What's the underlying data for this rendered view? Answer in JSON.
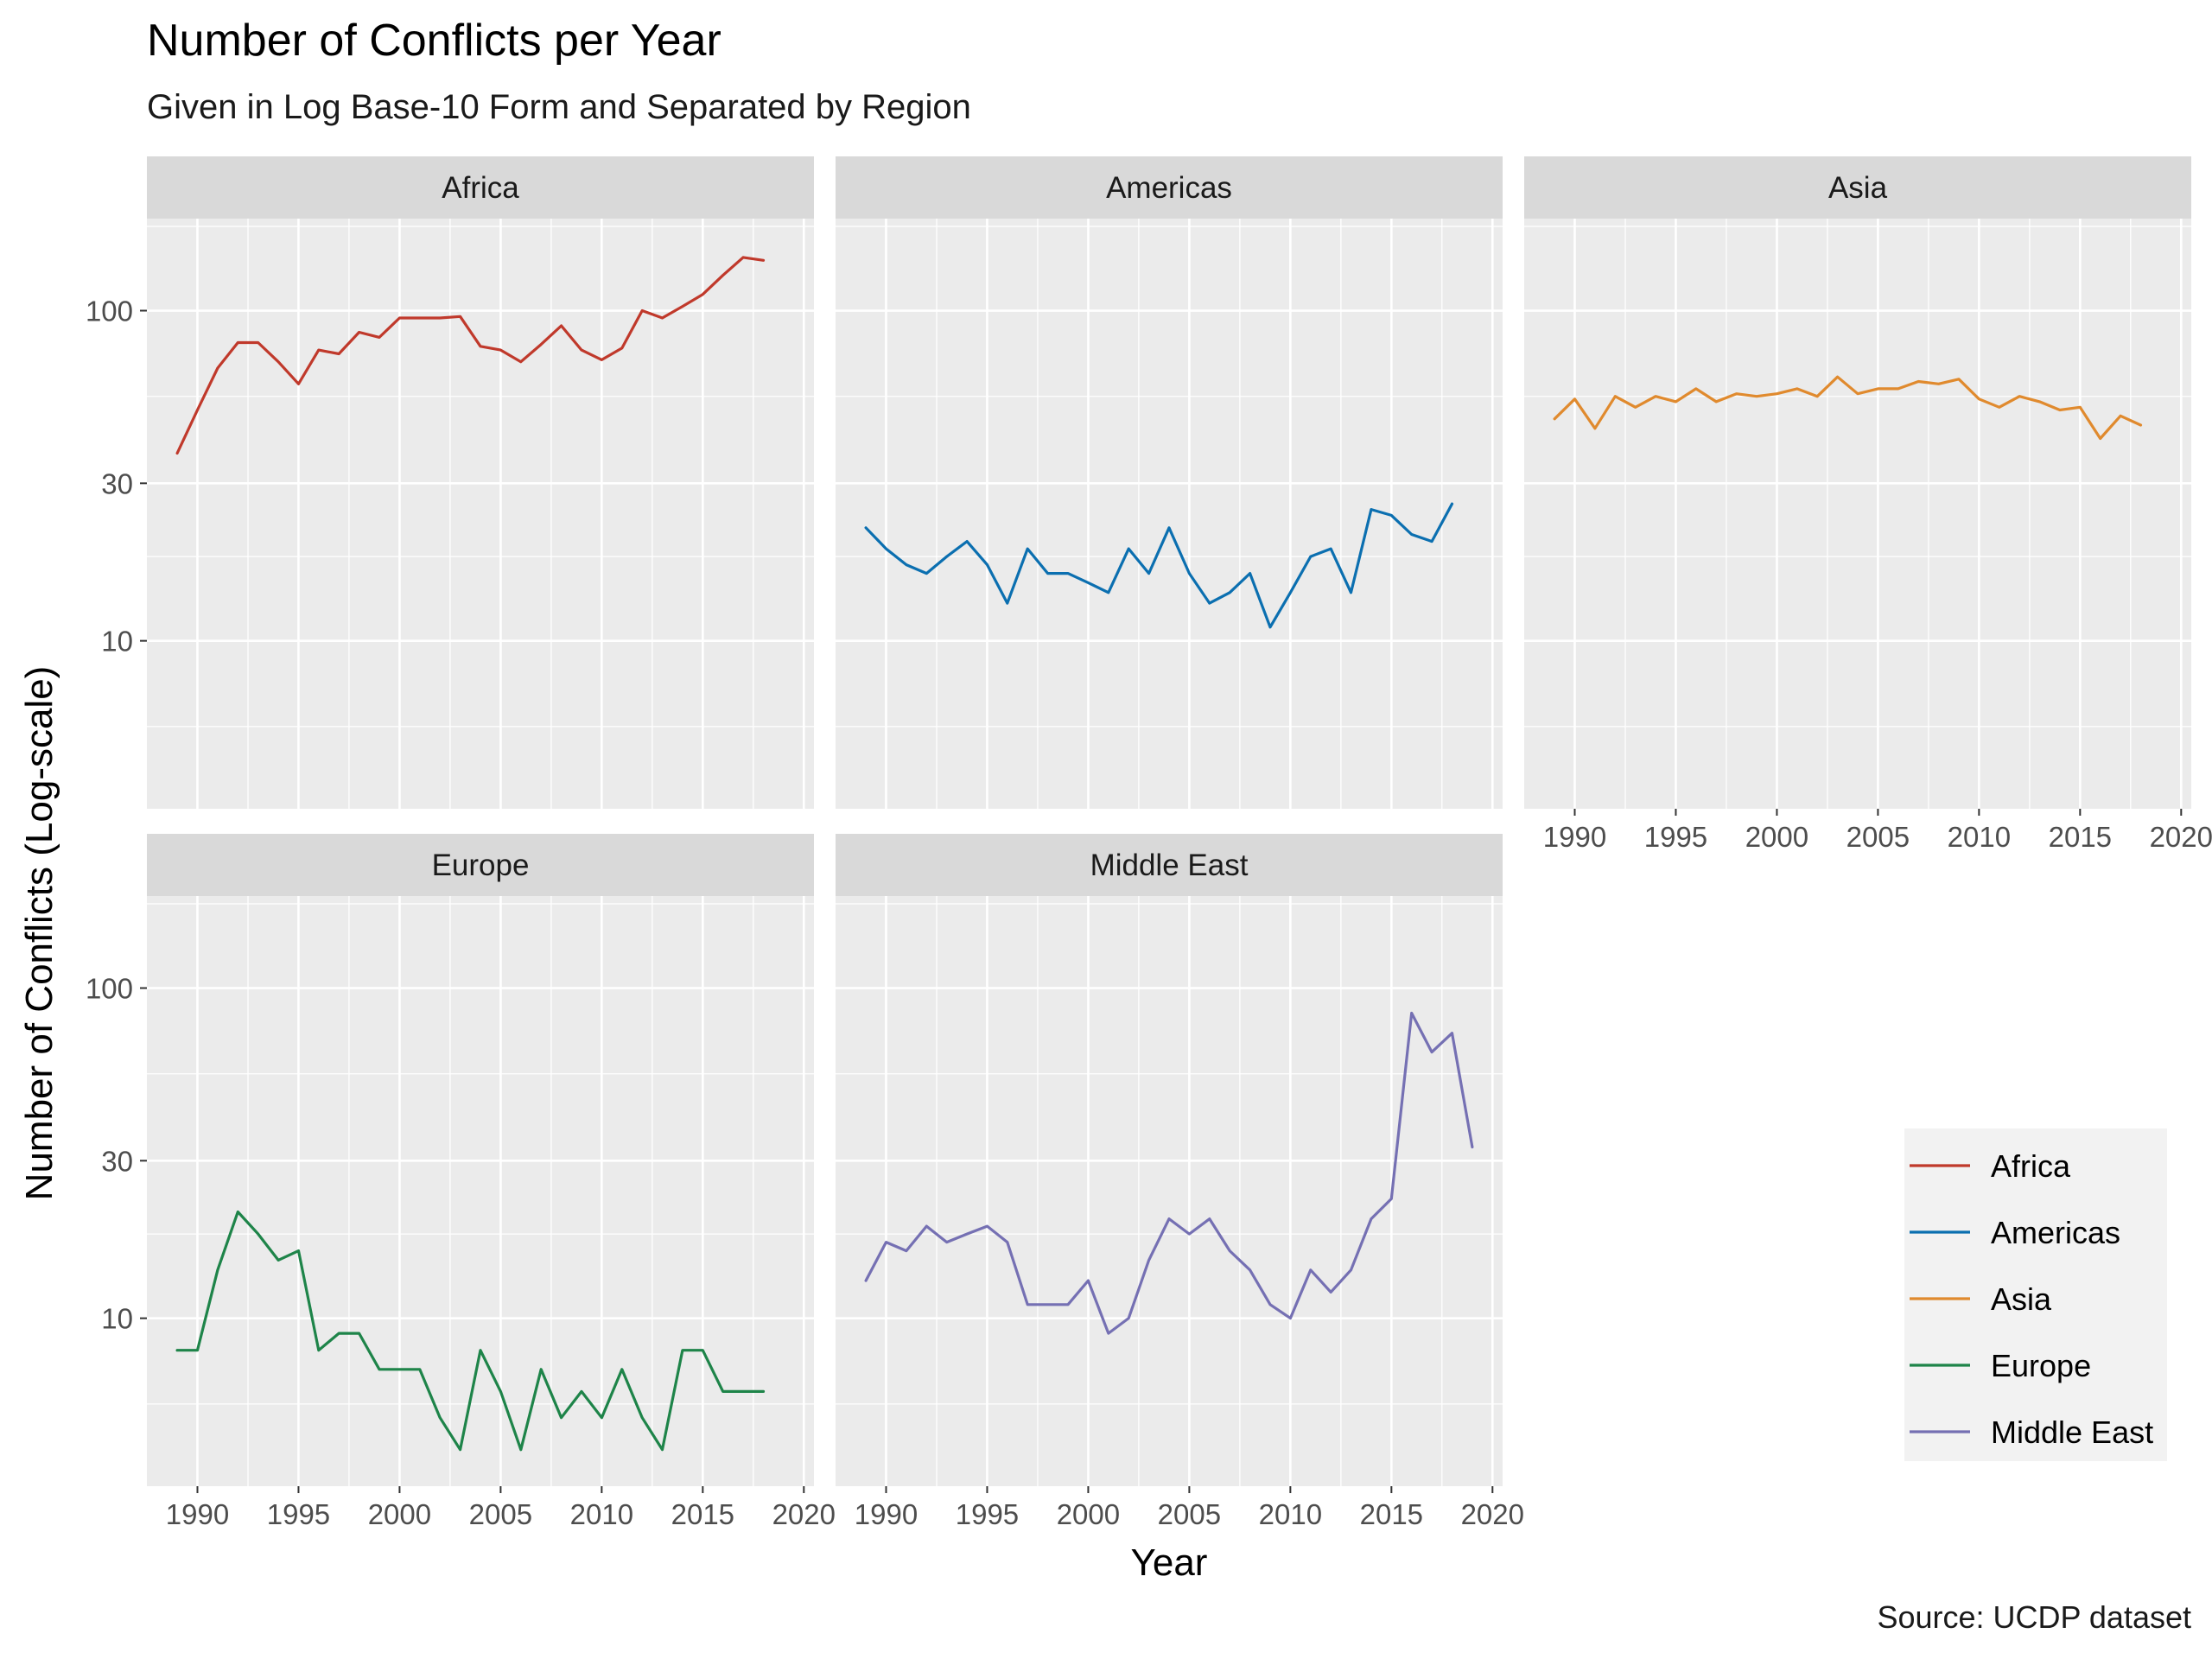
{
  "title": "Number of Conflicts per Year",
  "subtitle": "Given in Log Base-10 Form and Separated by Region",
  "caption": "Source: UCDP dataset",
  "xlabel": "Year",
  "ylabel": "Number of Conflicts (Log-scale)",
  "chart_data": {
    "type": "line",
    "layout": "facet-wrap",
    "xlabel": "Year",
    "ylabel": "Number of Conflicts (Log-scale)",
    "y_scale": "log10",
    "xlim": [
      1987.5,
      2020.5
    ],
    "ylim": [
      3.1,
      190
    ],
    "x_ticks": [
      1990,
      1995,
      2000,
      2005,
      2010,
      2015,
      2020
    ],
    "x_tick_labels": [
      "1990",
      "1995",
      "2000",
      "2005",
      "2010",
      "2015",
      "2020"
    ],
    "y_ticks": [
      10,
      30,
      100
    ],
    "y_tick_labels": [
      "10",
      "30",
      "100"
    ],
    "grid": true,
    "legend_position": "right",
    "series": [
      {
        "name": "Africa",
        "color": "#C0392B",
        "x": [
          1989,
          1990,
          1991,
          1992,
          1993,
          1994,
          1995,
          1996,
          1997,
          1998,
          1999,
          2000,
          2001,
          2002,
          2003,
          2004,
          2005,
          2006,
          2007,
          2008,
          2009,
          2010,
          2011,
          2012,
          2013,
          2014,
          2015,
          2016,
          2017,
          2018
        ],
        "y": [
          37,
          50,
          67,
          80,
          80,
          70,
          60,
          76,
          74,
          86,
          83,
          95,
          95,
          95,
          96,
          78,
          76,
          70,
          79,
          90,
          76,
          71,
          77,
          100,
          95,
          103,
          112,
          128,
          145,
          142
        ]
      },
      {
        "name": "Americas",
        "color": "#0B6FB0",
        "x": [
          1989,
          1990,
          1991,
          1992,
          1993,
          1994,
          1995,
          1996,
          1997,
          1998,
          1999,
          2000,
          2001,
          2002,
          2003,
          2004,
          2005,
          2006,
          2007,
          2008,
          2009,
          2010,
          2011,
          2012,
          2013,
          2014,
          2015,
          2016,
          2017,
          2018
        ],
        "y": [
          22,
          19,
          17,
          16,
          18,
          20,
          17,
          13,
          19,
          16,
          16,
          15,
          14,
          19,
          16,
          22,
          16,
          13,
          14,
          16,
          11,
          14,
          18,
          19,
          14,
          25,
          24,
          21,
          20,
          26
        ]
      },
      {
        "name": "Asia",
        "color": "#E08A2E",
        "x": [
          1989,
          1990,
          1991,
          1992,
          1993,
          1994,
          1995,
          1996,
          1997,
          1998,
          1999,
          2000,
          2001,
          2002,
          2003,
          2004,
          2005,
          2006,
          2007,
          2008,
          2009,
          2010,
          2011,
          2012,
          2013,
          2014,
          2015,
          2016,
          2017,
          2018
        ],
        "y": [
          47,
          54,
          44,
          55,
          51,
          55,
          53,
          58,
          53,
          56,
          55,
          56,
          58,
          55,
          63,
          56,
          58,
          58,
          61,
          60,
          62,
          54,
          51,
          55,
          53,
          50,
          51,
          41,
          48,
          45
        ]
      },
      {
        "name": "Europe",
        "color": "#1E8449",
        "x": [
          1989,
          1990,
          1991,
          1992,
          1993,
          1994,
          1995,
          1996,
          1997,
          1998,
          1999,
          2000,
          2001,
          2002,
          2003,
          2004,
          2005,
          2006,
          2007,
          2008,
          2009,
          2010,
          2011,
          2012,
          2013,
          2014,
          2015,
          2016,
          2017,
          2018
        ],
        "y": [
          8,
          8,
          14,
          21,
          18,
          15,
          16,
          8,
          9,
          9,
          7,
          7,
          7,
          5,
          4,
          8,
          6,
          4,
          7,
          5,
          6,
          5,
          7,
          5,
          4,
          8,
          8,
          6,
          6,
          6
        ]
      },
      {
        "name": "Middle East",
        "color": "#7570B3",
        "x": [
          1989,
          1990,
          1991,
          1992,
          1993,
          1994,
          1995,
          1996,
          1997,
          1998,
          1999,
          2000,
          2001,
          2002,
          2003,
          2004,
          2005,
          2006,
          2007,
          2008,
          2009,
          2010,
          2011,
          2012,
          2013,
          2014,
          2015,
          2016,
          2017,
          2018,
          2019
        ],
        "y": [
          13,
          17,
          16,
          19,
          17,
          18,
          19,
          17,
          11,
          11,
          11,
          13,
          9,
          10,
          15,
          20,
          18,
          20,
          16,
          14,
          11,
          10,
          14,
          12,
          14,
          20,
          23,
          84,
          64,
          73,
          33
        ]
      }
    ]
  }
}
